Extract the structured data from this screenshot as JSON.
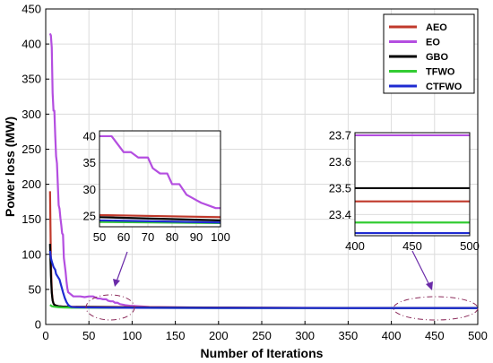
{
  "chart_data": {
    "type": "line",
    "title": "",
    "xlabel": "Number of Iterations",
    "ylabel": "Power loss (MW)",
    "xlim": [
      0,
      500
    ],
    "ylim": [
      0,
      450
    ],
    "xticks": [
      "0",
      "50",
      "100",
      "150",
      "200",
      "250",
      "300",
      "350",
      "400",
      "450",
      "500"
    ],
    "yticks": [
      "0",
      "50",
      "100",
      "150",
      "200",
      "250",
      "300",
      "350",
      "400",
      "450"
    ],
    "grid": true,
    "legend_position": "top-right",
    "series": [
      {
        "name": "AEO",
        "color": "#c0392b",
        "x": [
          5,
          6,
          7,
          8,
          9,
          10,
          12,
          15,
          20,
          30,
          50,
          100,
          200,
          300,
          400,
          500
        ],
        "y": [
          190,
          90,
          48,
          35,
          30,
          28,
          27,
          26,
          25.5,
          25.3,
          25.2,
          24.8,
          23.9,
          23.6,
          23.45,
          23.45
        ]
      },
      {
        "name": "EO",
        "color": "#b44ee0",
        "x": [
          5,
          6,
          7,
          8,
          9,
          10,
          11,
          12,
          13,
          14,
          15,
          16,
          17,
          18,
          19,
          20,
          21,
          22,
          23,
          24,
          25,
          26,
          28,
          30,
          32,
          35,
          40,
          45,
          50,
          55,
          60,
          63,
          66,
          70,
          72,
          75,
          78,
          80,
          83,
          86,
          88,
          90,
          92,
          95,
          98,
          100,
          120,
          150,
          200,
          300,
          400,
          500
        ],
        "y": [
          415,
          412,
          395,
          330,
          305,
          305,
          270,
          240,
          230,
          200,
          170,
          165,
          152,
          142,
          130,
          128,
          95,
          85,
          75,
          62,
          52,
          46,
          44,
          42,
          40,
          40,
          40,
          39,
          40,
          40,
          37,
          37,
          36,
          36,
          34,
          33,
          33,
          31,
          31,
          29,
          28.5,
          28,
          27.5,
          27,
          26.5,
          26.5,
          25,
          24.5,
          24,
          23.8,
          23.7,
          23.7
        ]
      },
      {
        "name": "GBO",
        "color": "#000000",
        "x": [
          5,
          6,
          7,
          8,
          9,
          10,
          12,
          15,
          20,
          30,
          50,
          100,
          200,
          300,
          400,
          500
        ],
        "y": [
          115,
          70,
          45,
          34,
          30,
          28,
          27,
          26,
          25.5,
          25,
          24.8,
          24.2,
          23.8,
          23.6,
          23.5,
          23.5
        ]
      },
      {
        "name": "TFWO",
        "color": "#33cc33",
        "x": [
          5,
          6,
          7,
          8,
          9,
          10,
          12,
          15,
          20,
          30,
          50,
          100,
          200,
          300,
          400,
          500
        ],
        "y": [
          28,
          27,
          26,
          25.8,
          25.5,
          25.3,
          25,
          24.6,
          24.3,
          24,
          23.9,
          23.7,
          23.5,
          23.4,
          23.37,
          23.37
        ]
      },
      {
        "name": "CTFWO",
        "color": "#1f2bd1",
        "x": [
          5,
          6,
          7,
          8,
          9,
          10,
          11,
          12,
          13,
          14,
          15,
          16,
          18,
          20,
          22,
          24,
          26,
          28,
          30,
          35,
          40,
          50,
          100,
          200,
          300,
          400,
          500
        ],
        "y": [
          105,
          95,
          90,
          86,
          82,
          80,
          78,
          72,
          70,
          68,
          66,
          64,
          55,
          46,
          38,
          32,
          28,
          26,
          25,
          24.6,
          24.4,
          24.2,
          23.8,
          23.5,
          23.4,
          23.33,
          23.33
        ]
      }
    ],
    "insets": [
      {
        "xlim": [
          50,
          100
        ],
        "ylim": [
          23,
          41
        ],
        "xticks": [
          "50",
          "60",
          "70",
          "80",
          "90",
          "100"
        ],
        "yticks": [
          "25",
          "30",
          "35",
          "40"
        ]
      },
      {
        "xlim": [
          400,
          500
        ],
        "ylim": [
          23.32,
          23.71
        ],
        "xticks": [
          "400",
          "450",
          "500"
        ],
        "yticks": [
          "23.4",
          "23.5",
          "23.6",
          "23.7"
        ]
      }
    ]
  }
}
